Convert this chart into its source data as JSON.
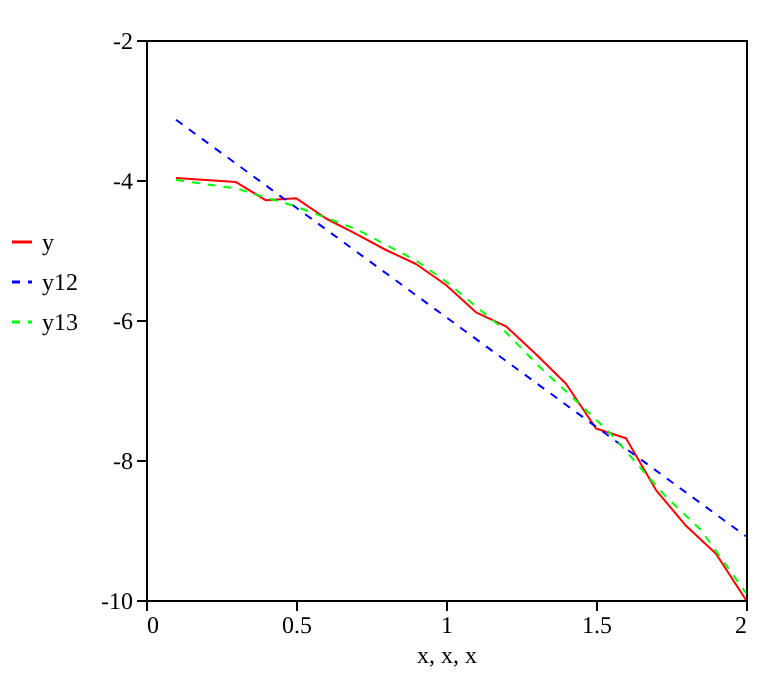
{
  "chart_data": {
    "type": "line",
    "xlabel": "x, x, x",
    "xlim": [
      0,
      2
    ],
    "xticks": [
      0,
      0.5,
      1,
      1.5,
      2
    ],
    "ylim": [
      -10,
      -2
    ],
    "yticks": [
      -10,
      -8,
      -6,
      -4,
      -2
    ],
    "grid": false,
    "legend": "left",
    "marker": "none",
    "series": [
      {
        "name": "y",
        "color": "#ff0000",
        "line_style": "solid",
        "x": [
          0.1,
          0.2,
          0.3,
          0.4,
          0.5,
          0.6,
          0.7,
          0.8,
          0.9,
          1.0,
          1.1,
          1.2,
          1.3,
          1.4,
          1.5,
          1.6,
          1.7,
          1.8,
          1.9,
          2.0
        ],
        "values": [
          -3.97,
          -4.0,
          -4.03,
          -4.29,
          -4.26,
          -4.55,
          -4.77,
          -5.0,
          -5.2,
          -5.5,
          -5.89,
          -6.09,
          -6.49,
          -6.91,
          -7.55,
          -7.69,
          -8.43,
          -8.94,
          -9.34,
          -10.0
        ]
      },
      {
        "name": "y12",
        "color": "#0000ff",
        "line_style": "dashed",
        "x": [
          0.1,
          2.0
        ],
        "values": [
          -3.14,
          -9.09
        ]
      },
      {
        "name": "y13",
        "color": "#00ff00",
        "line_style": "dashed",
        "x": [
          0.1,
          0.3,
          0.5,
          0.7,
          0.9,
          1.0,
          1.18,
          1.31,
          1.48,
          1.55,
          1.73,
          1.85,
          2.0
        ],
        "values": [
          -4.0,
          -4.12,
          -4.38,
          -4.7,
          -5.15,
          -5.45,
          -6.09,
          -6.66,
          -7.34,
          -7.63,
          -8.51,
          -9.0,
          -9.9
        ]
      }
    ]
  }
}
